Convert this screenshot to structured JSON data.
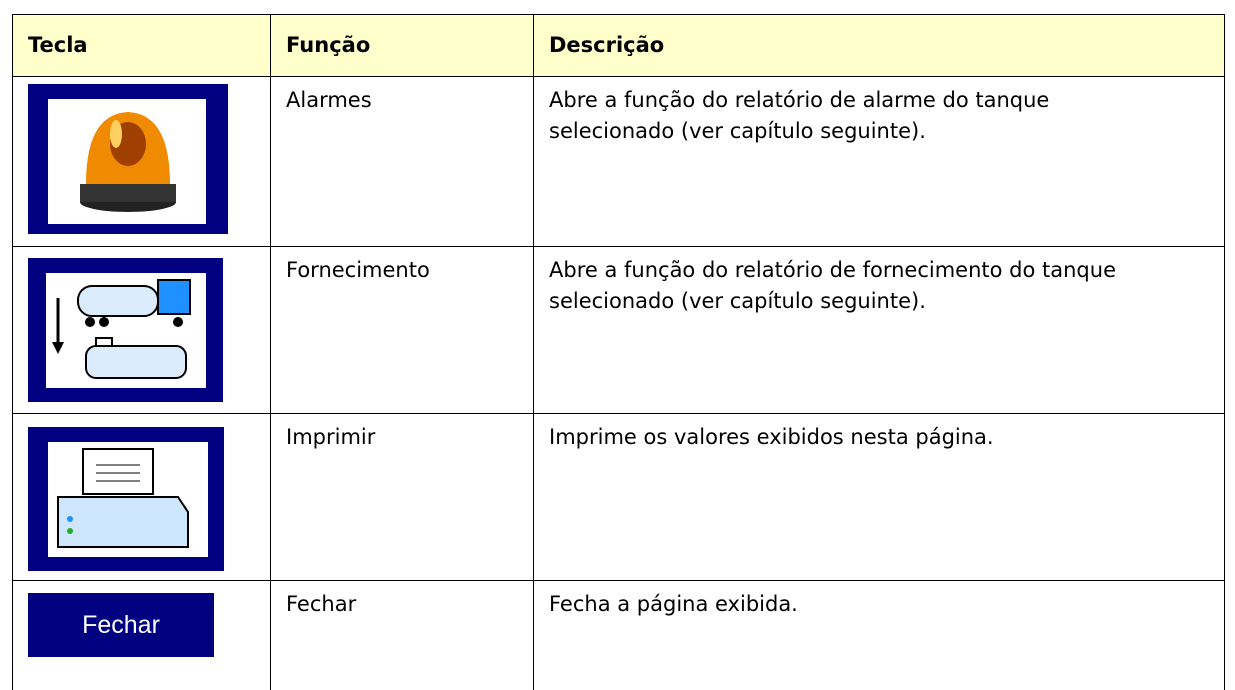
{
  "table": {
    "header": [
      "Tecla",
      "Função",
      "Descrição"
    ],
    "rows": [
      {
        "function": "Alarmes",
        "description": "Abre a função do relatório de alarme do tanque selecionado (ver capítulo seguinte)."
      },
      {
        "function": "Fornecimento",
        "description": "Abre a função do relatório de fornecimento do tanque selecionado (ver capítulo seguinte)."
      },
      {
        "function": "Imprimir",
        "description": "Imprime os valores exibidos nesta página."
      },
      {
        "key_label": "Fechar",
        "function": "Fechar",
        "description": "Fecha a página exibida."
      }
    ]
  }
}
